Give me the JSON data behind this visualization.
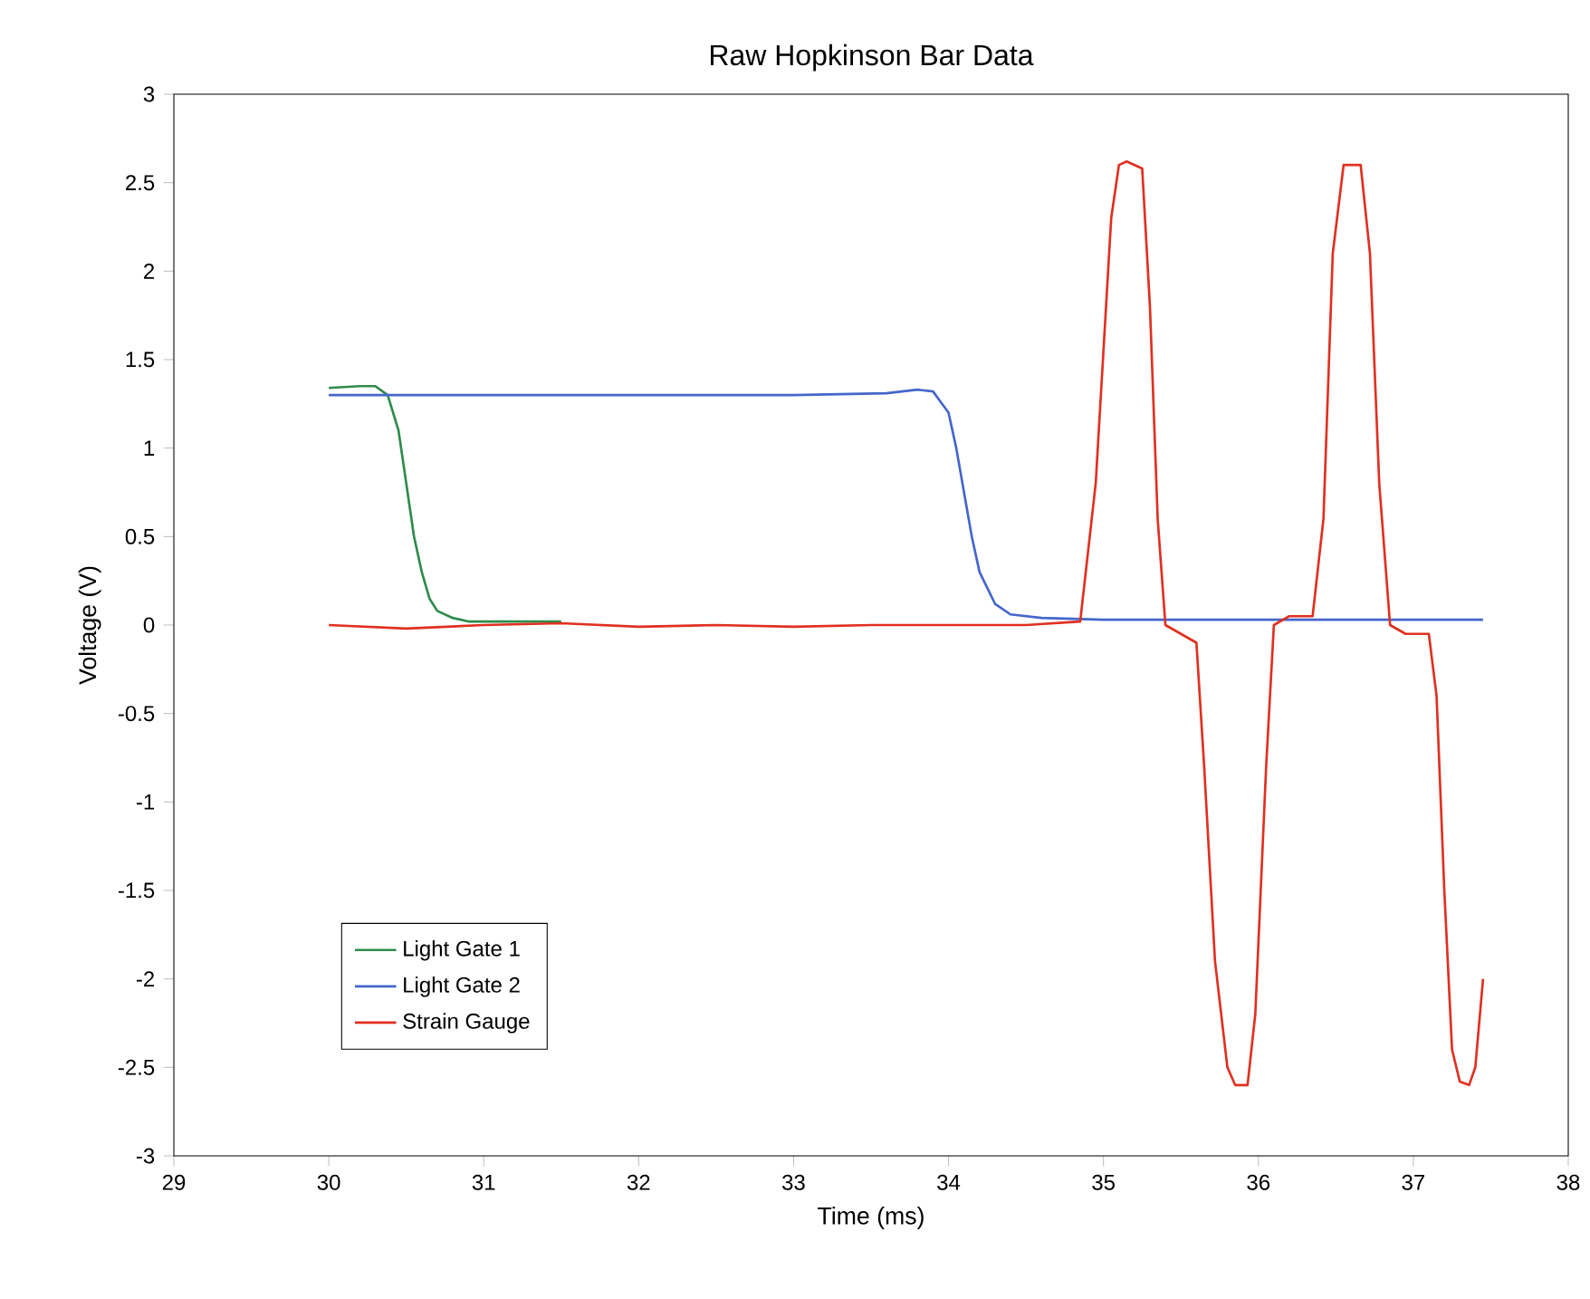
{
  "chart_data": {
    "type": "line",
    "title": "Raw Hopkinson Bar Data",
    "xlabel": "Time (ms)",
    "ylabel": "Voltage (V)",
    "xlim": [
      29,
      38
    ],
    "ylim": [
      -3,
      3
    ],
    "xticks": [
      29,
      30,
      31,
      32,
      33,
      34,
      35,
      36,
      37,
      38
    ],
    "yticks": [
      -3,
      -2.5,
      -2,
      -1.5,
      -1,
      -0.5,
      0,
      0.5,
      1,
      1.5,
      2,
      2.5,
      3
    ],
    "legend": "bottom left",
    "series": [
      {
        "name": "Light Gate 1",
        "color": "#2e8b4a",
        "x": [
          30,
          30.2,
          30.3,
          30.38,
          30.45,
          30.5,
          30.55,
          30.6,
          30.65,
          30.7,
          30.8,
          30.9,
          31.0,
          31.2,
          31.5
        ],
        "values": [
          1.34,
          1.35,
          1.35,
          1.3,
          1.1,
          0.8,
          0.5,
          0.3,
          0.15,
          0.08,
          0.04,
          0.02,
          0.02,
          0.02,
          0.02
        ]
      },
      {
        "name": "Light Gate 2",
        "color": "#4466cc",
        "x": [
          30,
          31,
          32,
          33,
          33.6,
          33.8,
          33.9,
          34.0,
          34.05,
          34.1,
          34.15,
          34.2,
          34.3,
          34.4,
          34.6,
          35,
          36,
          37,
          37.45
        ],
        "values": [
          1.3,
          1.3,
          1.3,
          1.3,
          1.31,
          1.33,
          1.32,
          1.2,
          1.0,
          0.75,
          0.5,
          0.3,
          0.12,
          0.06,
          0.04,
          0.03,
          0.03,
          0.03,
          0.03
        ]
      },
      {
        "name": "Strain Gauge",
        "color": "#e03020",
        "x": [
          30,
          30.5,
          31,
          31.5,
          32,
          32.5,
          33,
          33.5,
          34,
          34.5,
          34.85,
          34.95,
          35.05,
          35.1,
          35.15,
          35.25,
          35.3,
          35.35,
          35.4,
          35.5,
          35.6,
          35.65,
          35.72,
          35.8,
          35.85,
          35.93,
          35.98,
          36.05,
          36.1,
          36.2,
          36.35,
          36.42,
          36.48,
          36.55,
          36.66,
          36.72,
          36.78,
          36.85,
          36.95,
          37.1,
          37.15,
          37.2,
          37.25,
          37.3,
          37.36,
          37.4,
          37.45
        ],
        "values": [
          0,
          -0.02,
          0,
          0.01,
          -0.01,
          0,
          -0.01,
          0,
          0,
          0,
          0.02,
          0.8,
          2.3,
          2.6,
          2.62,
          2.58,
          1.8,
          0.6,
          0.0,
          -0.05,
          -0.1,
          -0.8,
          -1.9,
          -2.5,
          -2.6,
          -2.6,
          -2.2,
          -0.8,
          0.0,
          0.05,
          0.05,
          0.6,
          2.1,
          2.6,
          2.6,
          2.1,
          0.8,
          0.0,
          -0.05,
          -0.05,
          -0.4,
          -1.5,
          -2.4,
          -2.58,
          -2.6,
          -2.5,
          -2.0
        ]
      }
    ]
  }
}
